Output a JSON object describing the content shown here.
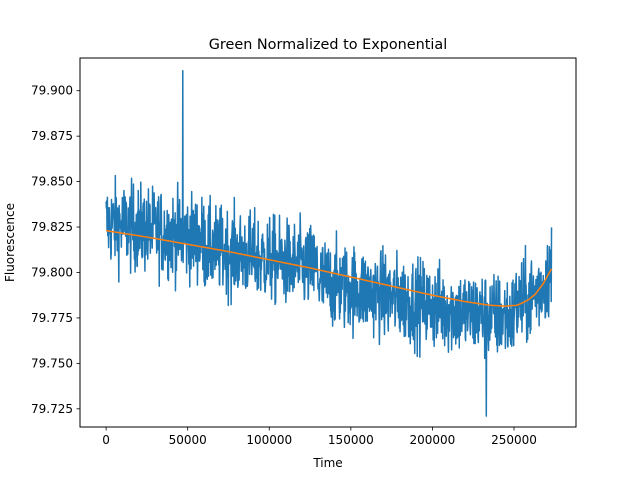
{
  "chart_data": {
    "type": "line",
    "title": "Green Normalized to Exponential",
    "xlabel": "Time",
    "ylabel": "Fluorescence",
    "xlim": [
      -16000,
      288000
    ],
    "ylim": [
      79.715,
      79.918
    ],
    "grid": false,
    "legend": "none",
    "x_ticks": [
      0,
      50000,
      100000,
      150000,
      200000,
      250000
    ],
    "x_tick_labels": [
      "0",
      "50000",
      "100000",
      "150000",
      "200000",
      "250000"
    ],
    "y_ticks": [
      79.725,
      79.75,
      79.775,
      79.8,
      79.825,
      79.85,
      79.875,
      79.9
    ],
    "y_tick_labels": [
      "79.725",
      "79.750",
      "79.775",
      "79.800",
      "79.825",
      "79.850",
      "79.875",
      "79.900"
    ],
    "series": [
      {
        "color": "#1f77b4",
        "style": "noisy-signal",
        "x_range": [
          0,
          273000
        ],
        "trend_start": 79.823,
        "trend_end": 79.79,
        "noise_amplitude": 0.03,
        "max_point": {
          "x": 47000,
          "y": 79.911
        },
        "min_point": {
          "x": 233000,
          "y": 79.721
        }
      },
      {
        "color": "#ff7f0e",
        "style": "fit",
        "x": [
          0,
          25000,
          50000,
          75000,
          100000,
          125000,
          150000,
          175000,
          200000,
          220000,
          235000,
          245000,
          252000,
          258000,
          263000,
          268000,
          273000
        ],
        "y": [
          79.823,
          79.8195,
          79.8155,
          79.8115,
          79.807,
          79.8025,
          79.7975,
          79.7925,
          79.7875,
          79.784,
          79.782,
          79.7815,
          79.782,
          79.7845,
          79.788,
          79.794,
          79.802
        ]
      }
    ]
  }
}
